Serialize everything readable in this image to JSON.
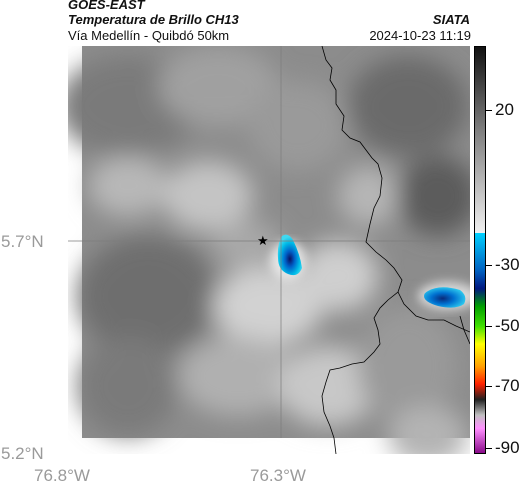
{
  "header": {
    "satellite": "GOES-EAST",
    "product": "Temperatura de Brillo CH13",
    "region": "Vía Medellín - Quibdó 50km",
    "agency": "SIATA",
    "timestamp": "2024-10-23 11:19"
  },
  "axes": {
    "lat_labels": [
      "5.7°N",
      "5.2°N"
    ],
    "lon_labels": [
      "76.8°W",
      "76.3°W"
    ]
  },
  "colorbar": {
    "ticks": [
      "20",
      "-30",
      "-50",
      "-70",
      "-90"
    ],
    "colors": [
      "#1b1b1b",
      "#7f7f7f",
      "#e6e6e6",
      "#00c8ff",
      "#0020a0",
      "#00d000",
      "#ffff00",
      "#ff4000",
      "#000000",
      "#ff80ff",
      "#800080"
    ]
  },
  "map": {
    "marker": "★",
    "marker_name": "star-icon",
    "border_color": "#000000"
  }
}
